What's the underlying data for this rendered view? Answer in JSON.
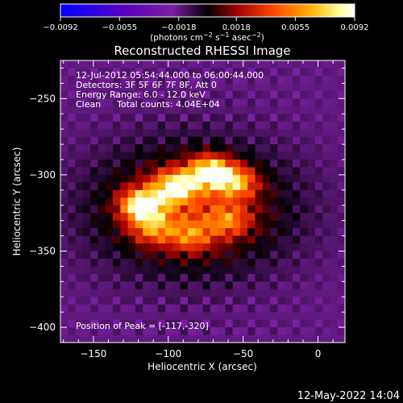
{
  "chart_data": {
    "type": "heatmap",
    "title": "Reconstructed RHESSI Image",
    "xlabel": "Heliocentric X (arcsec)",
    "ylabel": "Heliocentric Y (arcsec)",
    "xlim": [
      -172,
      18
    ],
    "ylim": [
      -410,
      -225
    ],
    "x_ticks": [
      -150,
      -100,
      -50,
      0
    ],
    "x_tick_labels": [
      "−150",
      "−100",
      "−50",
      "0"
    ],
    "y_ticks": [
      -250,
      -300,
      -350,
      -400
    ],
    "y_tick_labels": [
      "−250",
      "−300",
      "−350",
      "−400"
    ],
    "colorbar": {
      "min": -0.0092,
      "max": 0.0092,
      "tick_values": [
        -0.0092,
        -0.0055,
        -0.0018,
        0.0018,
        0.0055,
        0.0092
      ],
      "tick_labels": [
        "−0.0092",
        "−0.0055",
        "−0.0018",
        "0.0018",
        "0.0055",
        "0.0092"
      ],
      "units_parts": [
        "(photons cm",
        "−2",
        " s",
        "−1",
        " asec",
        "−2",
        ")"
      ],
      "colors": [
        "#0000ff",
        "#5a00c0",
        "#7a1fa0",
        "#000000",
        "#a00000",
        "#ff4400",
        "#ffb000",
        "#ffffa0",
        "#ffffff"
      ]
    },
    "annotations": {
      "time_range": "12-Jul-2012 05:54:44.000 to 06:00:44.000",
      "detectors": "Detectors: 3F 5F 6F 7F 8F, Att 0",
      "energy": "Energy Range: 6.0 - 12.0 keV",
      "algorithm": "Clean",
      "total_counts": "Total counts: 4.04E+04",
      "peak": "Position of Peak = [-117,-320]"
    },
    "peak_position": [
      -117,
      -320
    ],
    "sources": [
      {
        "x": -117,
        "y": -320,
        "peak": 0.0092
      },
      {
        "x": -95,
        "y": -308,
        "peak": 0.0082
      },
      {
        "x": -72,
        "y": -298,
        "peak": 0.0088
      },
      {
        "x": -55,
        "y": -305,
        "peak": 0.006
      },
      {
        "x": -110,
        "y": -335,
        "peak": 0.0045
      },
      {
        "x": -85,
        "y": -340,
        "peak": 0.004
      },
      {
        "x": -60,
        "y": -330,
        "peak": 0.004
      }
    ]
  },
  "footer": {
    "timestamp": "12-May-2022 14:04"
  }
}
